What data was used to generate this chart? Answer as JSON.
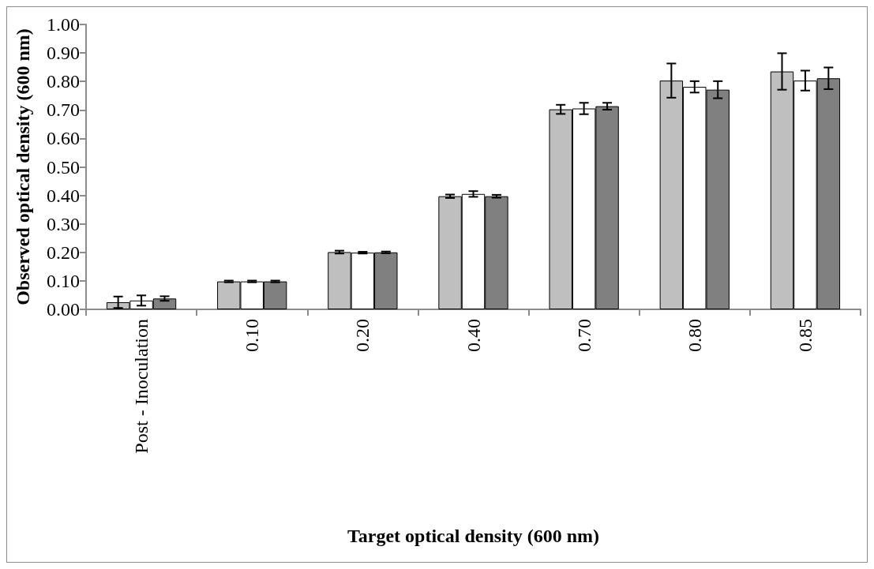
{
  "chart_data": {
    "type": "bar",
    "xlabel": "Target optical density (600 nm)",
    "ylabel": "Observed optical density (600 nm)",
    "categories": [
      "Post - Inoculation",
      "0.10",
      "0.20",
      "0.40",
      "0.70",
      "0.80",
      "0.85"
    ],
    "series": [
      {
        "color": "#bfbfbf",
        "values": [
          0.025,
          0.098,
          0.201,
          0.397,
          0.702,
          0.803,
          0.835
        ],
        "errors": [
          0.02,
          0.003,
          0.005,
          0.006,
          0.016,
          0.06,
          0.064
        ]
      },
      {
        "color": "#ffffff",
        "values": [
          0.031,
          0.098,
          0.199,
          0.405,
          0.705,
          0.781,
          0.803
        ],
        "errors": [
          0.018,
          0.003,
          0.003,
          0.01,
          0.02,
          0.02,
          0.035
        ]
      },
      {
        "color": "#808080",
        "values": [
          0.038,
          0.098,
          0.2,
          0.397,
          0.713,
          0.771,
          0.811
        ],
        "errors": [
          0.008,
          0.003,
          0.003,
          0.005,
          0.012,
          0.03,
          0.038
        ]
      }
    ],
    "ylim": [
      0,
      1
    ],
    "yticks": [
      {
        "value": 0,
        "label": "0.00"
      },
      {
        "value": 0.1,
        "label": "0.10"
      },
      {
        "value": 0.2,
        "label": "0.20"
      },
      {
        "value": 0.3,
        "label": "0.30"
      },
      {
        "value": 0.4,
        "label": "0.40"
      },
      {
        "value": 0.5,
        "label": "0.50"
      },
      {
        "value": 0.6,
        "label": "0.60"
      },
      {
        "value": 0.7,
        "label": "0.70"
      },
      {
        "value": 0.8,
        "label": "0.80"
      },
      {
        "value": 0.9,
        "label": "0.90"
      },
      {
        "value": 1,
        "label": "1.00"
      }
    ],
    "grid": false
  }
}
